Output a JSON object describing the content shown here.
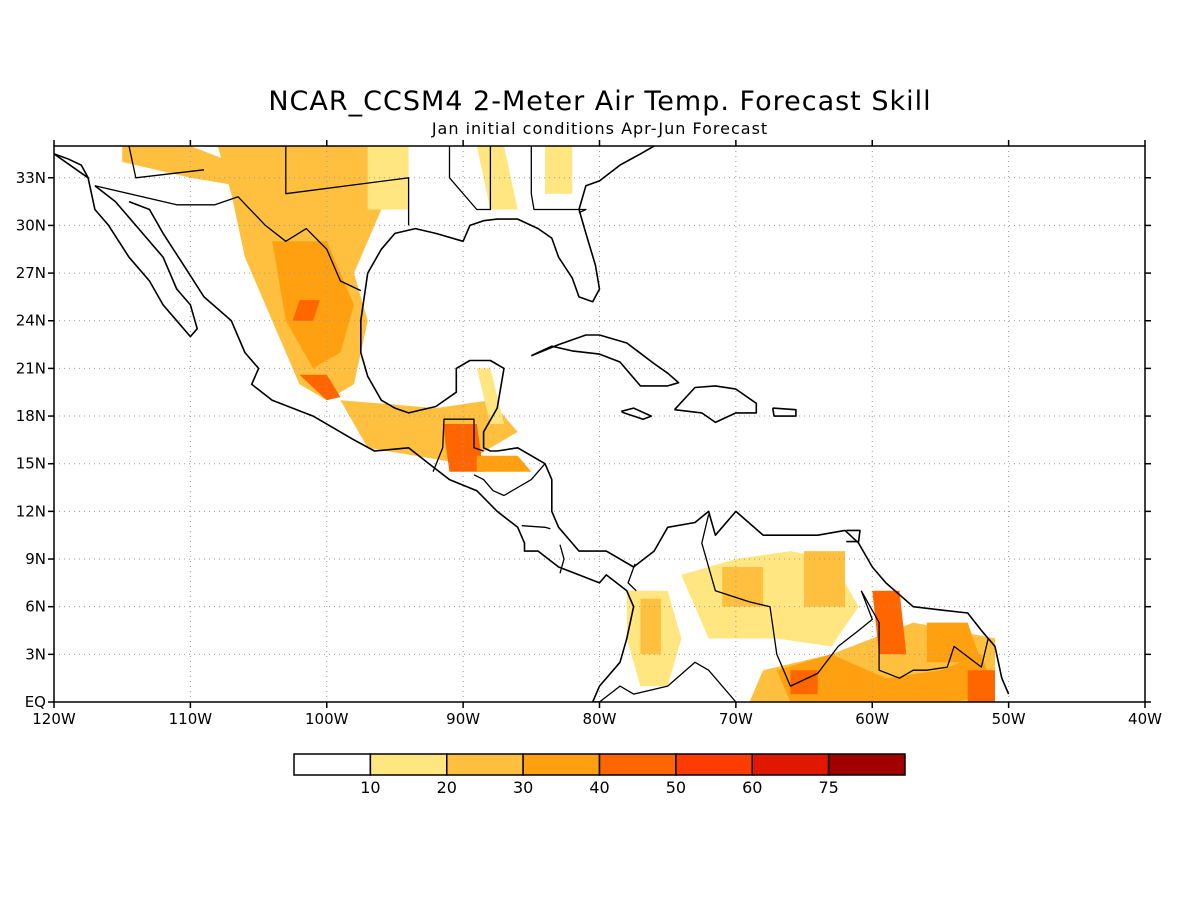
{
  "title": "NCAR_CCSM4 2-Meter Air Temp. Forecast Skill",
  "subtitle": "Jan initial conditions  Apr-Jun Forecast",
  "map": {
    "lon_range": [
      -120,
      -40
    ],
    "lat_range": [
      0,
      35
    ],
    "lon_ticks": [
      {
        "value": -120,
        "label": "120W"
      },
      {
        "value": -110,
        "label": "110W"
      },
      {
        "value": -100,
        "label": "100W"
      },
      {
        "value": -90,
        "label": "90W"
      },
      {
        "value": -80,
        "label": "80W"
      },
      {
        "value": -70,
        "label": "70W"
      },
      {
        "value": -60,
        "label": "60W"
      },
      {
        "value": -50,
        "label": "50W"
      },
      {
        "value": -40,
        "label": "40W"
      }
    ],
    "lat_ticks": [
      {
        "value": 0,
        "label": "EQ"
      },
      {
        "value": 3,
        "label": "3N"
      },
      {
        "value": 6,
        "label": "6N"
      },
      {
        "value": 9,
        "label": "9N"
      },
      {
        "value": 12,
        "label": "12N"
      },
      {
        "value": 15,
        "label": "15N"
      },
      {
        "value": 18,
        "label": "18N"
      },
      {
        "value": 21,
        "label": "21N"
      },
      {
        "value": 24,
        "label": "24N"
      },
      {
        "value": 27,
        "label": "27N"
      },
      {
        "value": 30,
        "label": "30N"
      },
      {
        "value": 33,
        "label": "33N"
      }
    ],
    "grid": "dotted"
  },
  "colorbar": {
    "colors": [
      "#ffffff",
      "#ffe680",
      "#ffc040",
      "#ffa010",
      "#ff6600",
      "#ff3c00",
      "#e01800",
      "#a00000"
    ],
    "labels": [
      "10",
      "20",
      "30",
      "40",
      "50",
      "60",
      "75"
    ]
  },
  "shading": [
    {
      "lon": [
        -115,
        -110,
        -107,
        -104,
        -103,
        -110,
        -115
      ],
      "lat": [
        35,
        35,
        34,
        33,
        32,
        33,
        34
      ],
      "level": 2
    },
    {
      "lon": [
        -108,
        -97,
        -96,
        -98,
        -97,
        -98,
        -100,
        -102,
        -104,
        -106,
        -107
      ],
      "lat": [
        35,
        35,
        31,
        27,
        24,
        20,
        19,
        20,
        24,
        28,
        32
      ],
      "level": 2
    },
    {
      "lon": [
        -104,
        -100,
        -98,
        -99,
        -101,
        -103
      ],
      "lat": [
        29,
        29,
        25,
        22,
        21,
        24
      ],
      "level": 3
    },
    {
      "lon": [
        -102,
        -100.5,
        -101,
        -102.5
      ],
      "lat": [
        25.3,
        25.3,
        24,
        24
      ],
      "level": 4
    },
    {
      "lon": [
        -102,
        -100,
        -99,
        -100
      ],
      "lat": [
        20.6,
        20.6,
        19.2,
        19
      ],
      "level": 4
    },
    {
      "lon": [
        -97,
        -94,
        -94,
        -97
      ],
      "lat": [
        35,
        35,
        31,
        31
      ],
      "level": 1
    },
    {
      "lon": [
        -99,
        -92,
        -88,
        -86,
        -90,
        -97
      ],
      "lat": [
        19,
        18.5,
        19,
        17,
        15,
        16
      ],
      "level": 2
    },
    {
      "lon": [
        -91.5,
        -89,
        -88.5,
        -91
      ],
      "lat": [
        17.5,
        17.5,
        14.5,
        14.5
      ],
      "level": 4
    },
    {
      "lon": [
        -89,
        -86,
        -85,
        -89
      ],
      "lat": [
        15.5,
        15.5,
        14.5,
        14.5
      ],
      "level": 3
    },
    {
      "lon": [
        -89,
        -88,
        -87,
        -88
      ],
      "lat": [
        21,
        21,
        17.5,
        17.5
      ],
      "level": 1
    },
    {
      "lon": [
        -89,
        -87,
        -86,
        -88
      ],
      "lat": [
        35,
        35,
        31,
        31
      ],
      "level": 1
    },
    {
      "lon": [
        -84,
        -82,
        -82,
        -84
      ],
      "lat": [
        35,
        35,
        32,
        32
      ],
      "level": 1
    },
    {
      "lon": [
        -78,
        -75,
        -74,
        -75,
        -77,
        -78
      ],
      "lat": [
        7,
        7,
        4,
        1,
        1,
        4
      ],
      "level": 1
    },
    {
      "lon": [
        -77,
        -75.5,
        -75.5,
        -77
      ],
      "lat": [
        6.5,
        6.5,
        3,
        3
      ],
      "level": 2
    },
    {
      "lon": [
        -74,
        -70,
        -66,
        -63,
        -61,
        -63,
        -67,
        -72
      ],
      "lat": [
        8,
        9,
        9.5,
        9,
        6,
        3.5,
        4,
        4
      ],
      "level": 1
    },
    {
      "lon": [
        -71,
        -68,
        -68,
        -71
      ],
      "lat": [
        8.5,
        8.5,
        6,
        6
      ],
      "level": 2
    },
    {
      "lon": [
        -65,
        -62,
        -62,
        -65
      ],
      "lat": [
        9.5,
        9.5,
        6,
        6
      ],
      "level": 2
    },
    {
      "lon": [
        -69,
        -65,
        -61,
        -57,
        -53,
        -51,
        -51,
        -57,
        -63,
        -68
      ],
      "lat": [
        0,
        0,
        0,
        0,
        0,
        0,
        4,
        5,
        3,
        2
      ],
      "level": 2
    },
    {
      "lon": [
        -67,
        -63,
        -59,
        -55,
        -52,
        -51,
        -54,
        -61,
        -66
      ],
      "lat": [
        2,
        3,
        1.5,
        2,
        3,
        0.5,
        0,
        0,
        0
      ],
      "level": 3
    },
    {
      "lon": [
        -56,
        -53,
        -52,
        -56
      ],
      "lat": [
        5,
        5,
        2.5,
        2.5
      ],
      "level": 3
    },
    {
      "lon": [
        -60,
        -58,
        -57.5,
        -59.5
      ],
      "lat": [
        7,
        7,
        3,
        3
      ],
      "level": 4
    },
    {
      "lon": [
        -53,
        -51,
        -51,
        -53
      ],
      "lat": [
        2,
        2,
        0,
        0
      ],
      "level": 4
    },
    {
      "lon": [
        -66,
        -64,
        -64,
        -66
      ],
      "lat": [
        2,
        2,
        0.5,
        0.5
      ],
      "level": 4
    }
  ],
  "coastlines": [
    {
      "lon": [
        -120,
        -117.5,
        -117,
        -116,
        -114.5,
        -113,
        -112,
        -111,
        -110,
        -109.5,
        -110,
        -111,
        -112,
        -114,
        -115.5,
        -117
      ],
      "lat": [
        34.5,
        33,
        31,
        30,
        28,
        26.5,
        25,
        24,
        23,
        23.5,
        25,
        26,
        28,
        30,
        31.5,
        32.5
      ]
    },
    {
      "lon": [
        -114.5,
        -113,
        -112,
        -110.5,
        -109,
        -107,
        -106,
        -105,
        -105.5,
        -104,
        -101,
        -98,
        -96.5,
        -94,
        -92.5,
        -91,
        -89,
        -87.5
      ],
      "lat": [
        31.5,
        31,
        29.5,
        27.5,
        25.5,
        24,
        22,
        21,
        20,
        19,
        18,
        16.5,
        15.8,
        16,
        15,
        14,
        13.3,
        12
      ]
    },
    {
      "lon": [
        -87.5,
        -86,
        -85.5,
        -85.5,
        -84.5,
        -83,
        -81.5,
        -80,
        -79.5,
        -78,
        -77.5,
        -78,
        -78.5,
        -80,
        -80.5,
        -80
      ],
      "lat": [
        12,
        11,
        10,
        9.5,
        9.5,
        8.5,
        8,
        7.5,
        8,
        7,
        6,
        4,
        2.5,
        1,
        0,
        0
      ]
    },
    {
      "lon": [
        -97,
        -97.5,
        -97.5,
        -97,
        -96,
        -95,
        -94,
        -92,
        -90.5,
        -90.5,
        -89.5,
        -88,
        -87,
        -87.5,
        -88.5,
        -88.5,
        -88,
        -87.5,
        -86,
        -84,
        -83.5,
        -83.5,
        -83,
        -82,
        -81.5,
        -79.5,
        -77.5,
        -76,
        -75,
        -73,
        -72,
        -71.5,
        -70,
        -68,
        -66,
        -64,
        -62,
        -61,
        -60,
        -59,
        -57,
        -55,
        -53,
        -52,
        -51,
        -50.5,
        -50
      ],
      "lat": [
        27,
        24,
        22,
        20.5,
        19,
        18.5,
        18.2,
        18.6,
        19.5,
        21,
        21.5,
        21.5,
        21,
        18.5,
        17,
        16,
        15.8,
        15.8,
        16,
        15,
        14,
        12,
        11,
        10,
        9.5,
        9.5,
        8.5,
        9.5,
        11,
        11.3,
        12,
        10.5,
        12,
        10.5,
        10.5,
        10.5,
        10.8,
        10,
        8.5,
        7.5,
        6,
        5.8,
        5.6,
        4.5,
        3.5,
        1.5,
        0.5
      ]
    },
    {
      "lon": [
        -117.5,
        -118,
        -119,
        -120
      ],
      "lat": [
        33,
        33.8,
        34.2,
        34.5
      ]
    },
    {
      "lon": [
        -97,
        -96,
        -95,
        -93.5,
        -92,
        -90,
        -89.5,
        -88.5,
        -87.5,
        -86,
        -84.5,
        -83.5,
        -83,
        -82,
        -81.5,
        -80.5,
        -80,
        -80.3,
        -81,
        -81.5,
        -81,
        -80,
        -78.5,
        -77,
        -76
      ],
      "lat": [
        27,
        28.5,
        29.5,
        29.8,
        29.5,
        29,
        30,
        30.3,
        30.4,
        30.4,
        29.8,
        29.2,
        28,
        26.7,
        25.5,
        25.2,
        26,
        27.5,
        29.5,
        31,
        32.5,
        32.8,
        33.8,
        34.5,
        35
      ]
    },
    {
      "lon": [
        -85,
        -83,
        -81,
        -80,
        -78,
        -76,
        -75,
        -74.2,
        -75,
        -77,
        -78.5,
        -80,
        -82,
        -83.5,
        -84.5,
        -85
      ],
      "lat": [
        21.8,
        22.5,
        23.1,
        23.1,
        22.6,
        21.3,
        20.7,
        20.1,
        19.9,
        19.9,
        21.4,
        21.9,
        22.1,
        22.4,
        22,
        21.8
      ]
    },
    {
      "lon": [
        -74.5,
        -73,
        -71.5,
        -70,
        -68.5,
        -68.5,
        -70,
        -71.5,
        -72.5,
        -74.5
      ],
      "lat": [
        18.4,
        19.8,
        19.9,
        19.7,
        18.8,
        18.2,
        18.2,
        17.6,
        18.2,
        18.4
      ]
    },
    {
      "lon": [
        -78.4,
        -77.5,
        -76.2,
        -76.8,
        -78.2,
        -78.4
      ],
      "lat": [
        18.3,
        18.5,
        18,
        17.8,
        18.2,
        18.3
      ]
    },
    {
      "lon": [
        -67.3,
        -65.6,
        -65.6,
        -67.2,
        -67.3
      ],
      "lat": [
        18.5,
        18.4,
        18,
        18,
        18.5
      ]
    },
    {
      "lon": [
        -61.9,
        -60.9,
        -61,
        -61.9
      ],
      "lat": [
        10.8,
        10.8,
        10.1,
        10.1
      ]
    }
  ],
  "borders": [
    {
      "lon": [
        -117,
        -111,
        -108.2,
        -106.5,
        -104.5,
        -103,
        -101.5,
        -100,
        -99,
        -97.5
      ],
      "lat": [
        32.5,
        31.3,
        31.3,
        31.8,
        30,
        29,
        29.8,
        28.5,
        26.5,
        25.9
      ]
    },
    {
      "lon": [
        -92.2,
        -91.5,
        -91.4,
        -89.2,
        -89.2,
        -88.5
      ],
      "lat": [
        14.5,
        16,
        17.8,
        17.8,
        16,
        15.8
      ]
    },
    {
      "lon": [
        -89.2,
        -88.5,
        -87.8,
        -87,
        -86,
        -85,
        -84
      ],
      "lat": [
        14.3,
        14,
        13.3,
        13,
        13.5,
        14,
        15
      ]
    },
    {
      "lon": [
        -85.7,
        -84,
        -83.6
      ],
      "lat": [
        11.1,
        11,
        10.9
      ]
    },
    {
      "lon": [
        -82.9,
        -82.6,
        -82.9
      ],
      "lat": [
        9.9,
        9,
        8.1
      ]
    },
    {
      "lon": [
        -77.4,
        -77.9,
        -77.3
      ],
      "lat": [
        8.7,
        7.5,
        7
      ]
    },
    {
      "lon": [
        -72,
        -72.5,
        -71.5,
        -69,
        -67.5,
        -67,
        -66,
        -64,
        -62.5,
        -61,
        -60,
        -60.8
      ],
      "lat": [
        11.8,
        10,
        7,
        6.3,
        6,
        3,
        1,
        1.8,
        3.5,
        4.5,
        5.2,
        7
      ]
    },
    {
      "lon": [
        -70,
        -72,
        -73,
        -75,
        -77.5,
        -78.5,
        -80
      ],
      "lat": [
        0,
        2,
        2.5,
        1,
        0.5,
        1,
        0
      ]
    },
    {
      "lon": [
        -60.8,
        -59.5,
        -59.5,
        -58,
        -57,
        -56,
        -54.5,
        -54,
        -52,
        -51.5
      ],
      "lat": [
        7,
        5,
        2,
        1.5,
        2,
        2,
        2.2,
        3.5,
        2.2,
        4
      ]
    },
    {
      "lon": [
        -109,
        -103,
        -103,
        -94,
        -94
      ],
      "lat": [
        35,
        35,
        32,
        33,
        30
      ]
    },
    {
      "lon": [
        -91,
        -91,
        -89,
        -88,
        -88
      ],
      "lat": [
        35,
        33,
        31,
        31,
        35
      ]
    },
    {
      "lon": [
        -85,
        -85,
        -84.8,
        -81,
        -81.5
      ],
      "lat": [
        35,
        32,
        31,
        31,
        30.8
      ]
    },
    {
      "lon": [
        -114.5,
        -114,
        -109
      ],
      "lat": [
        35,
        33,
        33.5
      ]
    }
  ]
}
